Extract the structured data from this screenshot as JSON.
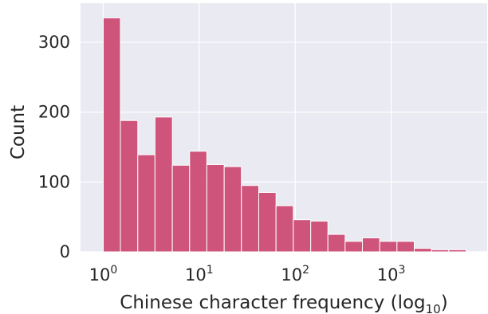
{
  "chart_data": {
    "type": "bar",
    "title": "",
    "xlabel": "Chinese character frequency (log",
    "xlabel_subscript": "10",
    "xlabel_suffix": ")",
    "ylabel": "Count",
    "x_scale": "log10",
    "xlim": [
      0.58,
      10000
    ],
    "ylim": [
      0,
      356
    ],
    "x_ticks": [
      {
        "value": 1,
        "base": "10",
        "exp": "0"
      },
      {
        "value": 10,
        "base": "10",
        "exp": "1"
      },
      {
        "value": 100,
        "base": "10",
        "exp": "2"
      },
      {
        "value": 1000,
        "base": "10",
        "exp": "3"
      }
    ],
    "y_ticks": [
      0,
      100,
      200,
      300
    ],
    "grid": true,
    "legend": "none",
    "bar_color": "#cc4c74",
    "background_color": "#eaeaf2",
    "bins": [
      {
        "x0": 1.0,
        "x1": 1.51,
        "count": 335
      },
      {
        "x0": 1.51,
        "x1": 2.29,
        "count": 188
      },
      {
        "x0": 2.29,
        "x1": 3.46,
        "count": 139
      },
      {
        "x0": 3.46,
        "x1": 5.25,
        "count": 193
      },
      {
        "x0": 5.25,
        "x1": 7.94,
        "count": 124
      },
      {
        "x0": 7.94,
        "x1": 12.0,
        "count": 144
      },
      {
        "x0": 12.0,
        "x1": 18.2,
        "count": 125
      },
      {
        "x0": 18.2,
        "x1": 27.5,
        "count": 122
      },
      {
        "x0": 27.5,
        "x1": 41.7,
        "count": 95
      },
      {
        "x0": 41.7,
        "x1": 63.1,
        "count": 85
      },
      {
        "x0": 63.1,
        "x1": 95.5,
        "count": 66
      },
      {
        "x0": 95.5,
        "x1": 145,
        "count": 46
      },
      {
        "x0": 145,
        "x1": 219,
        "count": 44
      },
      {
        "x0": 219,
        "x1": 331,
        "count": 25
      },
      {
        "x0": 331,
        "x1": 501,
        "count": 15
      },
      {
        "x0": 501,
        "x1": 759,
        "count": 20
      },
      {
        "x0": 759,
        "x1": 1148,
        "count": 15
      },
      {
        "x0": 1148,
        "x1": 1738,
        "count": 15
      },
      {
        "x0": 1738,
        "x1": 2630,
        "count": 5
      },
      {
        "x0": 2630,
        "x1": 3981,
        "count": 3
      },
      {
        "x0": 3981,
        "x1": 6026,
        "count": 3
      }
    ]
  }
}
